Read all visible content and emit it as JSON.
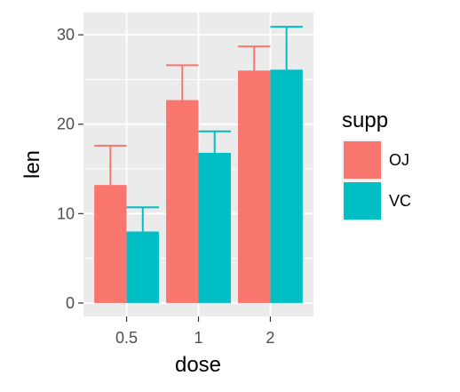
{
  "chart_data": {
    "type": "bar",
    "xlabel": "dose",
    "ylabel": "len",
    "categories": [
      "0.5",
      "1",
      "2"
    ],
    "ylim": [
      -1.5,
      32.5
    ],
    "yticks": [
      0,
      10,
      20,
      30
    ],
    "legend": {
      "title": "supp",
      "position": "right"
    },
    "grid": true,
    "series": [
      {
        "name": "OJ",
        "color": "#F8766D",
        "values": [
          13.2,
          22.7,
          26.0
        ],
        "error_upper": [
          17.6,
          26.6,
          28.7
        ]
      },
      {
        "name": "VC",
        "color": "#00BFC4",
        "values": [
          8.0,
          16.8,
          26.1
        ],
        "error_upper": [
          10.7,
          19.2,
          30.9
        ]
      }
    ]
  }
}
